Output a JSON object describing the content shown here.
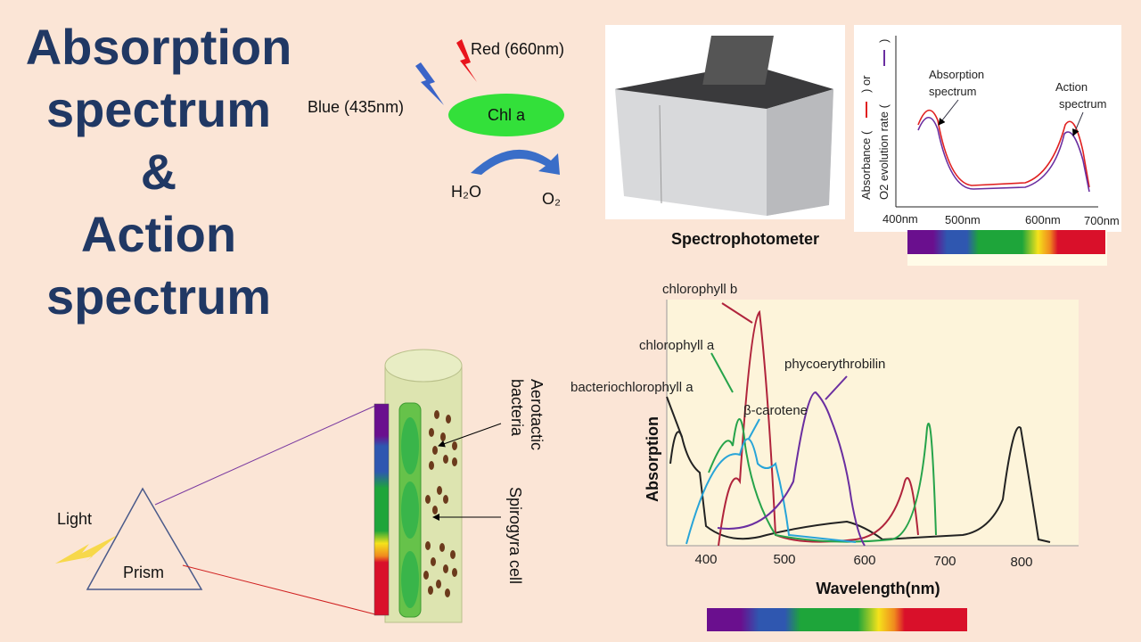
{
  "title": {
    "lines": [
      "Absorption",
      "spectrum",
      "&",
      "Action",
      "spectrum"
    ]
  },
  "photosynthesis": {
    "red_light": "Red (660nm)",
    "blue_light": "Blue (435nm)",
    "pigment": "Chl a",
    "reactant": "H₂O",
    "product": "O₂"
  },
  "instrument": {
    "caption": "Spectrophotometer"
  },
  "small_graph": {
    "y_label_line1_start": "Absorbance (",
    "y_label_line1_end": ") or",
    "y_label_line2_start": "O2 evolution rate (",
    "y_label_line2_end": ")",
    "absorption_annotation": [
      "Absorption",
      "spectrum"
    ],
    "action_annotation": [
      "Action",
      "spectrum"
    ],
    "x_labels": [
      "400nm",
      "500nm",
      "600nm",
      "700nm"
    ]
  },
  "experiment": {
    "light": "Light",
    "prism": "Prism",
    "bacteria": [
      "Aerotactic",
      "bacteria"
    ],
    "cell": "Spirogyra cell"
  },
  "absorption_chart": {
    "y_label": "Absorption",
    "x_label": "Wavelength(nm)",
    "x_labels": [
      "400",
      "500",
      "600",
      "700",
      "800"
    ],
    "pigments": [
      "chlorophyll b",
      "chlorophyll a",
      "phycoerythrobilin",
      "bacteriochlorophyll a",
      "β-carotene"
    ]
  }
}
